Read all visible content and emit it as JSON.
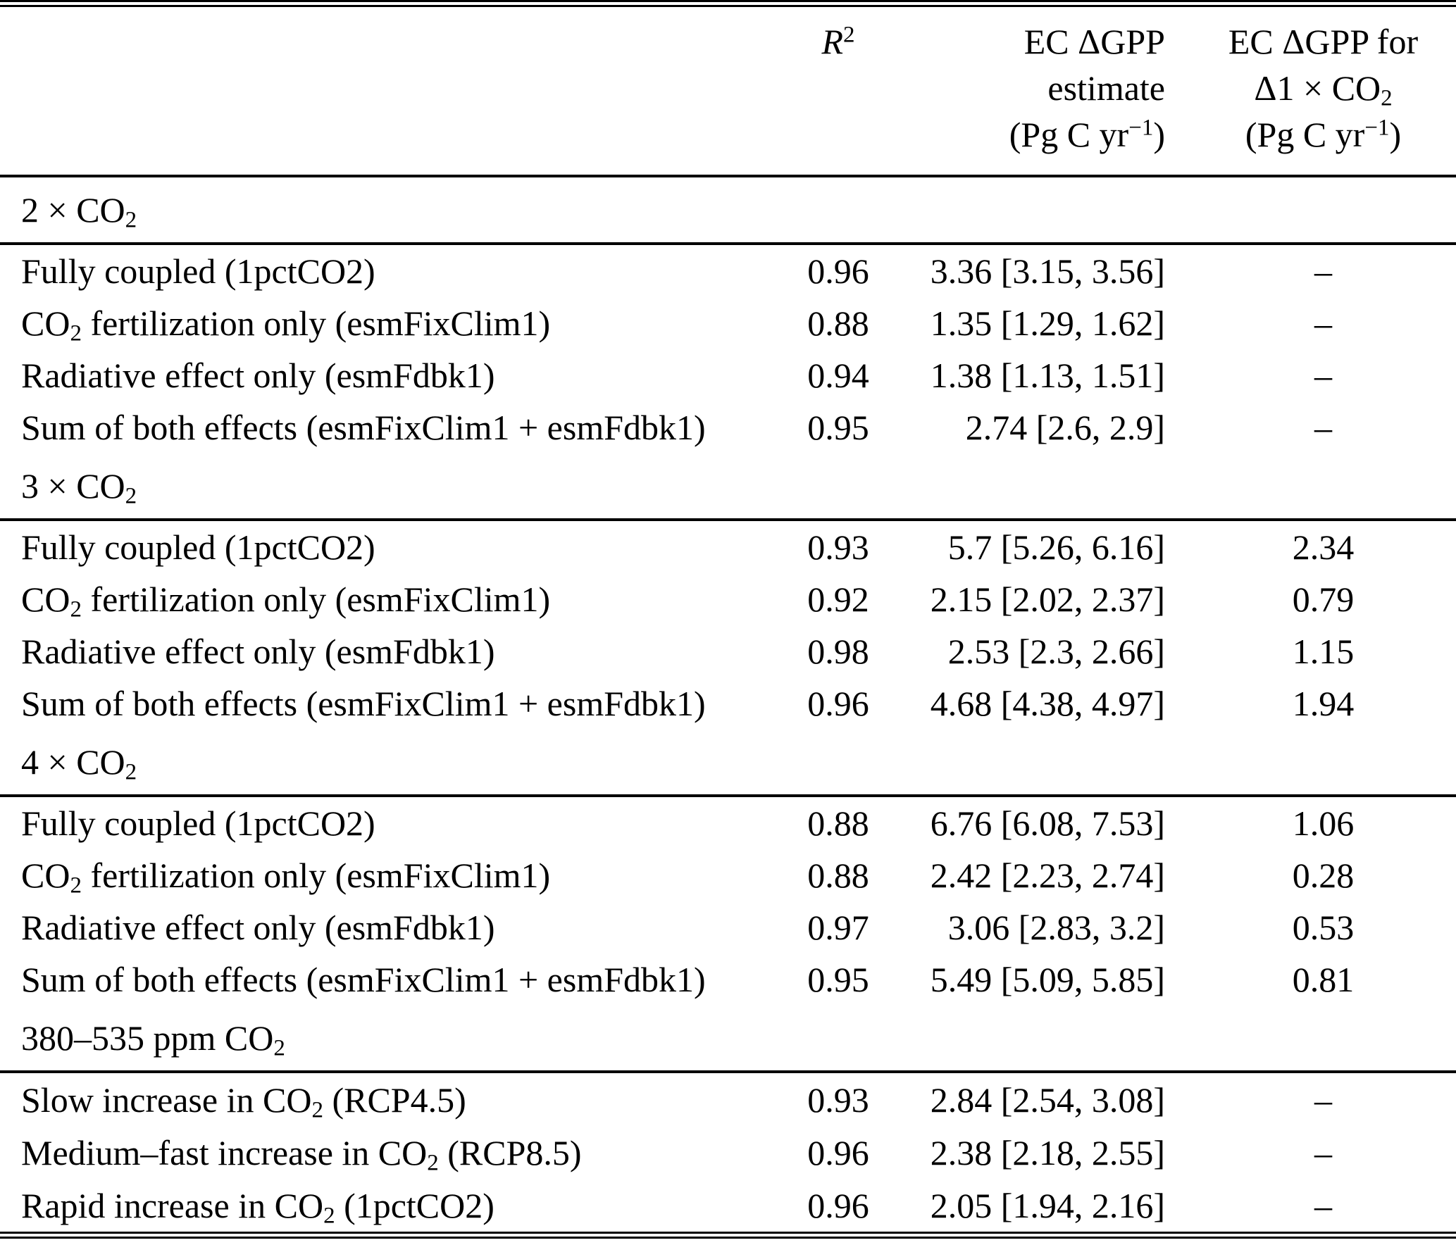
{
  "header": {
    "label": "",
    "r2": [
      {
        "i": "R"
      },
      {
        "sup": "2"
      }
    ],
    "estimate": [
      {
        "t": "EC ΔGPP"
      },
      {
        "br": true
      },
      {
        "t": "estimate"
      },
      {
        "br": true
      },
      {
        "t": "(Pg C yr"
      },
      {
        "sup": "−1"
      },
      {
        "t": ")"
      }
    ],
    "per_co2": [
      {
        "t": "EC ΔGPP for"
      },
      {
        "br": true
      },
      {
        "t": "Δ1 × CO"
      },
      {
        "sub": "2"
      },
      {
        "br": true
      },
      {
        "t": "(Pg C yr"
      },
      {
        "sup": "−1"
      },
      {
        "t": ")"
      }
    ]
  },
  "missing_value": "–",
  "sections": [
    {
      "title": [
        {
          "t": "2 × CO"
        },
        {
          "sub": "2"
        }
      ],
      "rows": [
        {
          "label": [
            {
              "t": "Fully coupled (1pctCO2)"
            }
          ],
          "r2": "0.96",
          "estimate": "3.36 [3.15, 3.56]",
          "per1xco2": "–"
        },
        {
          "label": [
            {
              "t": "CO"
            },
            {
              "sub": "2"
            },
            {
              "t": " fertilization only (esmFixClim1)"
            }
          ],
          "r2": "0.88",
          "estimate": "1.35 [1.29, 1.62]",
          "per1xco2": "–"
        },
        {
          "label": [
            {
              "t": "Radiative effect only (esmFdbk1)"
            }
          ],
          "r2": "0.94",
          "estimate": "1.38 [1.13, 1.51]",
          "per1xco2": "–"
        },
        {
          "label": [
            {
              "t": "Sum of both effects (esmFixClim1 + esmFdbk1)"
            }
          ],
          "r2": "0.95",
          "estimate": "2.74 [2.6, 2.9]",
          "per1xco2": "–"
        }
      ]
    },
    {
      "title": [
        {
          "t": "3 × CO"
        },
        {
          "sub": "2"
        }
      ],
      "rows": [
        {
          "label": [
            {
              "t": "Fully coupled (1pctCO2)"
            }
          ],
          "r2": "0.93",
          "estimate": "5.7 [5.26, 6.16]",
          "per1xco2": "2.34"
        },
        {
          "label": [
            {
              "t": "CO"
            },
            {
              "sub": "2"
            },
            {
              "t": " fertilization only (esmFixClim1)"
            }
          ],
          "r2": "0.92",
          "estimate": "2.15 [2.02, 2.37]",
          "per1xco2": "0.79"
        },
        {
          "label": [
            {
              "t": "Radiative effect only (esmFdbk1)"
            }
          ],
          "r2": "0.98",
          "estimate": "2.53 [2.3, 2.66]",
          "per1xco2": "1.15"
        },
        {
          "label": [
            {
              "t": "Sum of both effects (esmFixClim1 + esmFdbk1)"
            }
          ],
          "r2": "0.96",
          "estimate": "4.68 [4.38, 4.97]",
          "per1xco2": "1.94"
        }
      ]
    },
    {
      "title": [
        {
          "t": "4 × CO"
        },
        {
          "sub": "2"
        }
      ],
      "rows": [
        {
          "label": [
            {
              "t": "Fully coupled (1pctCO2)"
            }
          ],
          "r2": "0.88",
          "estimate": "6.76 [6.08, 7.53]",
          "per1xco2": "1.06"
        },
        {
          "label": [
            {
              "t": "CO"
            },
            {
              "sub": "2"
            },
            {
              "t": " fertilization only (esmFixClim1)"
            }
          ],
          "r2": "0.88",
          "estimate": "2.42 [2.23, 2.74]",
          "per1xco2": "0.28"
        },
        {
          "label": [
            {
              "t": "Radiative effect only (esmFdbk1)"
            }
          ],
          "r2": "0.97",
          "estimate": "3.06 [2.83, 3.2]",
          "per1xco2": "0.53"
        },
        {
          "label": [
            {
              "t": "Sum of both effects (esmFixClim1 + esmFdbk1)"
            }
          ],
          "r2": "0.95",
          "estimate": "5.49 [5.09, 5.85]",
          "per1xco2": "0.81"
        }
      ]
    },
    {
      "title": [
        {
          "t": "380–535 ppm CO"
        },
        {
          "sub": "2"
        }
      ],
      "rows": [
        {
          "label": [
            {
              "t": "Slow increase in CO"
            },
            {
              "sub": "2"
            },
            {
              "t": " (RCP4.5)"
            }
          ],
          "r2": "0.93",
          "estimate": "2.84 [2.54, 3.08]",
          "per1xco2": "–"
        },
        {
          "label": [
            {
              "t": "Medium–fast increase in CO"
            },
            {
              "sub": "2"
            },
            {
              "t": " (RCP8.5)"
            }
          ],
          "r2": "0.96",
          "estimate": "2.38 [2.18, 2.55]",
          "per1xco2": "–"
        },
        {
          "label": [
            {
              "t": "Rapid increase in CO"
            },
            {
              "sub": "2"
            },
            {
              "t": " (1pctCO2)"
            }
          ],
          "r2": "0.96",
          "estimate": "2.05 [1.94, 2.16]",
          "per1xco2": "–"
        }
      ]
    }
  ]
}
